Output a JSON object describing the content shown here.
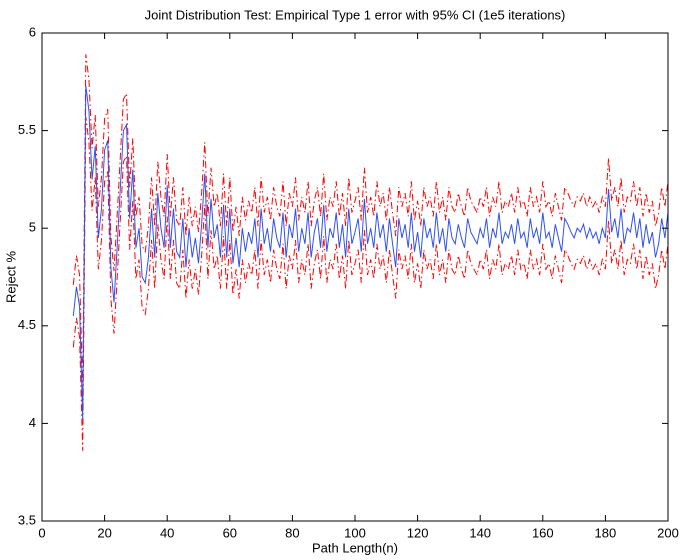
{
  "chart_data": {
    "type": "line",
    "title": "Joint Distribution Test: Empirical Type 1 error with 95% CI (1e5 iterations)",
    "xlabel": "Path Length(n)",
    "ylabel": "Reject %",
    "xlim": [
      0,
      200
    ],
    "xticks": [
      0,
      20,
      40,
      60,
      80,
      100,
      120,
      140,
      160,
      180,
      200
    ],
    "ylim": [
      3.5,
      6
    ],
    "yticks": [
      3.5,
      4,
      4.5,
      5,
      5.5,
      6
    ],
    "grid": false,
    "x": [
      10,
      11,
      12,
      13,
      14,
      15,
      16,
      17,
      18,
      19,
      20,
      21,
      22,
      23,
      24,
      25,
      26,
      27,
      28,
      29,
      30,
      31,
      32,
      33,
      34,
      35,
      36,
      37,
      38,
      39,
      40,
      41,
      42,
      43,
      44,
      45,
      46,
      47,
      48,
      49,
      50,
      51,
      52,
      53,
      54,
      55,
      56,
      57,
      58,
      59,
      60,
      61,
      62,
      63,
      64,
      65,
      66,
      67,
      68,
      69,
      70,
      71,
      72,
      73,
      74,
      75,
      76,
      77,
      78,
      79,
      80,
      81,
      82,
      83,
      84,
      85,
      86,
      87,
      88,
      89,
      90,
      91,
      92,
      93,
      94,
      95,
      96,
      97,
      98,
      99,
      100,
      101,
      102,
      103,
      104,
      105,
      106,
      107,
      108,
      109,
      110,
      111,
      112,
      113,
      114,
      115,
      116,
      117,
      118,
      119,
      120,
      121,
      122,
      123,
      124,
      125,
      126,
      127,
      128,
      129,
      130,
      131,
      132,
      133,
      134,
      135,
      136,
      137,
      138,
      139,
      140,
      141,
      142,
      143,
      144,
      145,
      146,
      147,
      148,
      149,
      150,
      151,
      152,
      153,
      154,
      155,
      156,
      157,
      158,
      159,
      160,
      161,
      162,
      163,
      164,
      165,
      166,
      167,
      168,
      169,
      170,
      171,
      172,
      173,
      174,
      175,
      176,
      177,
      178,
      179,
      180,
      181,
      182,
      183,
      184,
      185,
      186,
      187,
      188,
      189,
      190,
      191,
      192,
      193,
      194,
      195,
      196,
      197,
      198,
      199,
      200
    ],
    "series": [
      {
        "color": "#ff0000",
        "line_style": "dashdot",
        "values": [
          4.71,
          4.86,
          4.76,
          4.18,
          5.89,
          5.76,
          5.41,
          5.58,
          5.11,
          5.26,
          5.56,
          5.61,
          4.96,
          4.78,
          5.06,
          5.36,
          5.66,
          5.69,
          5.21,
          5.46,
          5.06,
          5.16,
          4.91,
          4.88,
          5.01,
          5.26,
          5.01,
          5.34,
          5.16,
          5.06,
          5.38,
          5.06,
          5.26,
          5.04,
          5.01,
          5.21,
          4.96,
          5.16,
          5.01,
          5.11,
          4.98,
          5.18,
          5.44,
          5.06,
          5.31,
          5.11,
          5.18,
          5.01,
          5.28,
          5.01,
          5.26,
          4.98,
          5.11,
          4.96,
          5.16,
          5.04,
          5.14,
          5.08,
          5.21,
          5.01,
          5.26,
          5.08,
          5.16,
          5.04,
          5.21,
          5.11,
          5.06,
          5.24,
          5.01,
          5.18,
          5.11,
          5.26,
          5.04,
          5.16,
          5.08,
          5.24,
          5.01,
          5.14,
          5.21,
          5.06,
          5.28,
          5.04,
          5.16,
          5.11,
          5.24,
          5.06,
          5.18,
          5.01,
          5.26,
          5.08,
          5.14,
          5.21,
          5.04,
          5.31,
          5.08,
          5.16,
          5.06,
          5.24,
          5.11,
          5.18,
          5.04,
          5.21,
          5.08,
          4.96,
          5.21,
          5.11,
          5.18,
          5.06,
          5.24,
          5.04,
          5.14,
          5.01,
          5.21,
          5.11,
          5.16,
          5.06,
          5.24,
          5.08,
          5.16,
          5.04,
          5.21,
          5.11,
          5.08,
          5.18,
          5.11,
          5.06,
          5.21,
          5.14,
          5.11,
          5.08,
          5.16,
          5.11,
          5.21,
          5.06,
          5.16,
          5.11,
          5.24,
          5.08,
          5.14,
          5.11,
          5.18,
          5.08,
          5.21,
          5.11,
          5.14,
          5.06,
          5.21,
          5.11,
          5.16,
          5.08,
          5.24,
          5.11,
          5.14,
          5.06,
          5.18,
          5.11,
          5.04,
          5.21,
          5.18,
          5.14,
          5.11,
          5.16,
          5.14,
          5.18,
          5.11,
          5.16,
          5.11,
          5.14,
          5.08,
          5.16,
          5.11,
          5.36,
          5.14,
          5.21,
          5.11,
          5.26,
          5.08,
          5.16,
          5.14,
          5.24,
          5.11,
          5.21,
          5.06,
          5.18,
          5.08,
          5.14,
          5.01,
          5.08,
          5.21,
          5.11,
          5.24
        ]
      },
      {
        "color": "#ff0000",
        "line_style": "dashdot",
        "values": [
          4.39,
          4.54,
          4.44,
          3.86,
          5.57,
          5.44,
          5.09,
          5.26,
          4.79,
          4.94,
          5.24,
          5.29,
          4.64,
          4.46,
          4.74,
          5.04,
          5.34,
          5.37,
          4.89,
          5.14,
          4.74,
          4.84,
          4.59,
          4.56,
          4.69,
          4.94,
          4.69,
          5.02,
          4.84,
          4.74,
          5.06,
          4.74,
          4.94,
          4.72,
          4.69,
          4.89,
          4.64,
          4.84,
          4.69,
          4.79,
          4.66,
          4.86,
          5.12,
          4.74,
          4.99,
          4.79,
          4.86,
          4.69,
          4.96,
          4.69,
          4.94,
          4.66,
          4.79,
          4.64,
          4.84,
          4.72,
          4.82,
          4.76,
          4.89,
          4.69,
          4.94,
          4.76,
          4.84,
          4.72,
          4.89,
          4.79,
          4.74,
          4.92,
          4.69,
          4.86,
          4.79,
          4.94,
          4.72,
          4.84,
          4.76,
          4.92,
          4.69,
          4.82,
          4.89,
          4.74,
          4.96,
          4.72,
          4.84,
          4.79,
          4.92,
          4.74,
          4.86,
          4.69,
          4.94,
          4.76,
          4.82,
          4.89,
          4.72,
          4.99,
          4.76,
          4.84,
          4.74,
          4.92,
          4.79,
          4.86,
          4.72,
          4.89,
          4.76,
          4.64,
          4.89,
          4.79,
          4.86,
          4.74,
          4.92,
          4.72,
          4.82,
          4.69,
          4.89,
          4.79,
          4.84,
          4.74,
          4.92,
          4.76,
          4.84,
          4.72,
          4.89,
          4.79,
          4.76,
          4.86,
          4.79,
          4.74,
          4.89,
          4.82,
          4.79,
          4.76,
          4.84,
          4.79,
          4.89,
          4.74,
          4.84,
          4.79,
          4.92,
          4.76,
          4.82,
          4.79,
          4.86,
          4.76,
          4.89,
          4.79,
          4.82,
          4.74,
          4.89,
          4.79,
          4.84,
          4.76,
          4.92,
          4.79,
          4.82,
          4.74,
          4.86,
          4.79,
          4.72,
          4.89,
          4.86,
          4.82,
          4.79,
          4.84,
          4.82,
          4.86,
          4.79,
          4.84,
          4.79,
          4.82,
          4.76,
          4.84,
          4.79,
          5.04,
          4.82,
          4.89,
          4.79,
          4.94,
          4.76,
          4.84,
          4.82,
          4.92,
          4.79,
          4.89,
          4.74,
          4.86,
          4.76,
          4.82,
          4.69,
          4.76,
          4.89,
          4.79,
          4.92
        ]
      },
      {
        "color": "#3050f0",
        "line_style": "solid",
        "values": [
          4.55,
          4.7,
          4.6,
          4.02,
          5.73,
          5.6,
          5.25,
          5.42,
          4.95,
          5.1,
          5.4,
          5.45,
          4.8,
          4.62,
          4.9,
          5.2,
          5.5,
          5.53,
          5.05,
          5.3,
          4.9,
          5.0,
          4.75,
          4.72,
          4.85,
          5.1,
          4.85,
          5.18,
          5.0,
          4.9,
          5.22,
          4.9,
          5.1,
          4.88,
          4.85,
          5.05,
          4.8,
          5.0,
          4.85,
          4.95,
          4.82,
          5.02,
          5.28,
          4.9,
          5.15,
          4.95,
          5.02,
          4.85,
          5.12,
          4.85,
          5.1,
          4.82,
          4.95,
          4.8,
          5.0,
          4.88,
          4.98,
          4.92,
          5.05,
          4.85,
          5.1,
          4.92,
          5.0,
          4.88,
          5.05,
          4.95,
          4.9,
          5.08,
          4.85,
          5.02,
          4.95,
          5.1,
          4.88,
          5.0,
          4.92,
          5.08,
          4.85,
          4.98,
          5.05,
          4.9,
          5.12,
          4.88,
          5.0,
          4.95,
          5.08,
          4.9,
          5.02,
          4.85,
          5.1,
          4.92,
          4.98,
          5.05,
          4.88,
          5.15,
          4.92,
          5.0,
          4.9,
          5.08,
          4.95,
          5.02,
          4.88,
          5.05,
          4.92,
          4.8,
          5.05,
          4.95,
          5.02,
          4.9,
          5.08,
          4.88,
          4.98,
          4.85,
          5.05,
          4.95,
          5.0,
          4.9,
          5.08,
          4.92,
          5.0,
          4.88,
          5.05,
          4.95,
          4.92,
          5.02,
          4.95,
          4.9,
          5.05,
          4.98,
          4.95,
          4.92,
          5.0,
          4.95,
          5.05,
          4.9,
          5.0,
          4.95,
          5.08,
          4.92,
          4.98,
          4.95,
          5.02,
          4.92,
          5.05,
          4.95,
          4.98,
          4.9,
          5.05,
          4.95,
          5.0,
          4.92,
          5.08,
          4.95,
          4.98,
          4.9,
          5.02,
          4.95,
          4.88,
          5.05,
          5.02,
          4.98,
          4.95,
          5.0,
          4.98,
          5.02,
          4.95,
          5.0,
          4.95,
          4.98,
          4.92,
          5.0,
          4.95,
          5.2,
          4.98,
          5.05,
          4.95,
          5.1,
          4.92,
          5.0,
          4.98,
          5.08,
          4.95,
          5.05,
          4.9,
          5.02,
          4.92,
          4.98,
          4.85,
          4.92,
          5.05,
          4.95,
          5.08
        ]
      }
    ]
  }
}
